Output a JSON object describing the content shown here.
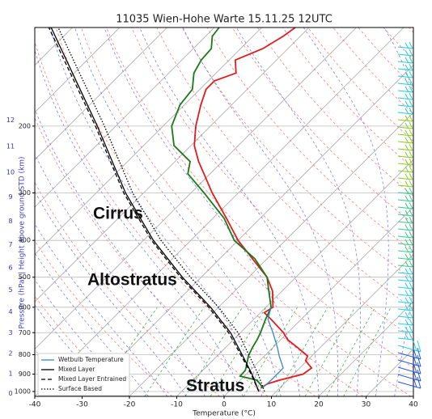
{
  "chart_data": {
    "type": "skewt",
    "title": "11035 Wien-Hohe Warte 15.11.25 12UTC",
    "xlabel": "Temperature (°C)",
    "ylabel": "Pressure (hPa) | Height above ground STD (km)",
    "xlim": [
      -40,
      40
    ],
    "xticks": [
      -40,
      -30,
      -20,
      -10,
      0,
      10,
      20,
      30,
      40
    ],
    "ylim": [
      1030,
      110
    ],
    "yticks": [
      1000,
      900,
      800,
      700,
      600,
      500,
      400,
      300,
      200
    ],
    "log_scale": true,
    "grid": true,
    "height_ticks": [
      0,
      1,
      2,
      3,
      4,
      5,
      6,
      7,
      8,
      9,
      10,
      11,
      12
    ],
    "legend": "lower left",
    "annotations": [
      "Cirrus",
      "Altostratus",
      "Stratus"
    ],
    "series": [
      {
        "color": "#e31a1c",
        "linestyle": "solid",
        "pressure": [
          980,
          955,
          934,
          900,
          867,
          830,
          806,
          767,
          730,
          699,
          646,
          620,
          600,
          544,
          500,
          447,
          400,
          350,
          300,
          267,
          248,
          225,
          200,
          176,
          160,
          152,
          145,
          134,
          125,
          116,
          110
        ],
        "values": [
          6.0,
          6.5,
          8.2,
          12.0,
          12.5,
          9.7,
          9.1,
          5.3,
          1.4,
          -1.0,
          -6.3,
          -9.2,
          -8.5,
          -12.0,
          -16.1,
          -23.1,
          -30.0,
          -37.1,
          -45.5,
          -51.3,
          -55.0,
          -59.3,
          -63.1,
          -66.5,
          -68.7,
          -68.7,
          -65.8,
          -68.7,
          -65.3,
          -63.6,
          -62.9
        ]
      },
      {
        "color": "#1a7a1a",
        "linestyle": "solid",
        "pressure": [
          980,
          934,
          911,
          880,
          850,
          806,
          767,
          730,
          699,
          646,
          600,
          544,
          500,
          447,
          400,
          350,
          300,
          267,
          248,
          225,
          200,
          176,
          160,
          145,
          134,
          125,
          116,
          110
        ],
        "values": [
          6.5,
          3.6,
          -0.9,
          -1.0,
          -1.9,
          -3.4,
          -4.3,
          -5.0,
          -5.8,
          -7.5,
          -8.9,
          -12.8,
          -16.1,
          -22.6,
          -30.8,
          -37.6,
          -47.2,
          -54.7,
          -56.8,
          -63.6,
          -68.2,
          -70.9,
          -71.6,
          -74.7,
          -75.9,
          -76.2,
          -78.6,
          -79.0
        ]
      },
      {
        "name": "Wetbulb Temperature",
        "color": "#3a87c8",
        "linestyle": "solid",
        "pressure": [
          980,
          934,
          867,
          806,
          767,
          699,
          646,
          600
        ],
        "values": [
          6.3,
          6.5,
          6.5,
          3.1,
          1.0,
          -3.2,
          -7.0,
          -8.9
        ]
      },
      {
        "name": "Mixed Layer",
        "color": "#000000",
        "linestyle": "solid",
        "pressure": [
          1000,
          900,
          800,
          700,
          600,
          500,
          400,
          300,
          200,
          110
        ],
        "values": [
          6.3,
          1.2,
          -5.0,
          -12.1,
          -21.7,
          -34.0,
          -47.9,
          -63.8,
          -83.9,
          -114.5
        ]
      },
      {
        "name": "Mixed Layer Entrained",
        "color": "#000000",
        "linestyle": "dashed",
        "pressure": [
          1000,
          900,
          800,
          700,
          600,
          500,
          400,
          300,
          200,
          110
        ],
        "values": [
          6.3,
          1.0,
          -5.3,
          -12.5,
          -22.1,
          -34.4,
          -48.3,
          -64.2,
          -84.3,
          -115.0
        ]
      },
      {
        "name": "Surface Based",
        "color": "#000000",
        "linestyle": "dotted",
        "pressure": [
          1000,
          900,
          800,
          700,
          600,
          500,
          400,
          300,
          200,
          110
        ],
        "values": [
          7.5,
          2.5,
          -3.6,
          -10.5,
          -20.0,
          -32.3,
          -46.3,
          -62.3,
          -82.4,
          -113.0
        ]
      }
    ]
  }
}
